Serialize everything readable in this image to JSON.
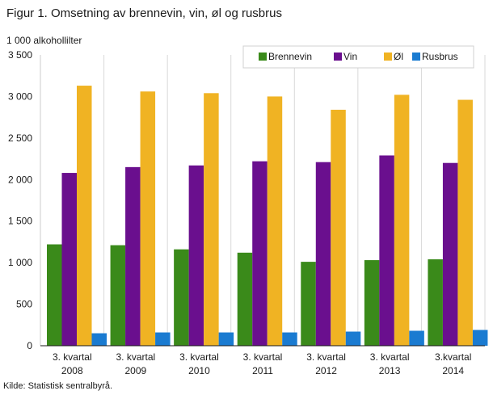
{
  "title": "Figur 1. Omsetning av brennevin, vin, øl og rusbrus",
  "source": "Kilde: Statistisk sentralbyrå.",
  "chart_data": {
    "type": "bar",
    "ylabel": "1 000 alkohollilter",
    "ylim": [
      0,
      3500
    ],
    "yticks": [
      0,
      500,
      1000,
      1500,
      2000,
      2500,
      3000,
      3500
    ],
    "ytick_labels": [
      "0",
      "500",
      "1 000",
      "1 500",
      "2 000",
      "2 500",
      "3 000",
      "3 500"
    ],
    "categories": [
      [
        "3. kvartal",
        "2008"
      ],
      [
        "3. kvartal",
        "2009"
      ],
      [
        "3. kvartal",
        "2010"
      ],
      [
        "3. kvartal",
        "2011"
      ],
      [
        "3. kvartal",
        "2012"
      ],
      [
        "3. kvartal",
        "2013"
      ],
      [
        "3.kvartal",
        "2014"
      ]
    ],
    "series": [
      {
        "name": "Brennevin",
        "color": "#3a8a1a",
        "values": [
          1220,
          1210,
          1160,
          1120,
          1010,
          1030,
          1040
        ]
      },
      {
        "name": "Vin",
        "color": "#6a0f8e",
        "values": [
          2080,
          2150,
          2170,
          2220,
          2210,
          2290,
          2200
        ]
      },
      {
        "name": "Øl",
        "color": "#f0b323",
        "values": [
          3130,
          3060,
          3040,
          3000,
          2840,
          3020,
          2960
        ]
      },
      {
        "name": "Rusbrus",
        "color": "#1a7bd1",
        "values": [
          150,
          160,
          160,
          160,
          170,
          180,
          190
        ]
      }
    ],
    "grid": "vertical category separators",
    "legend": "top-right"
  }
}
